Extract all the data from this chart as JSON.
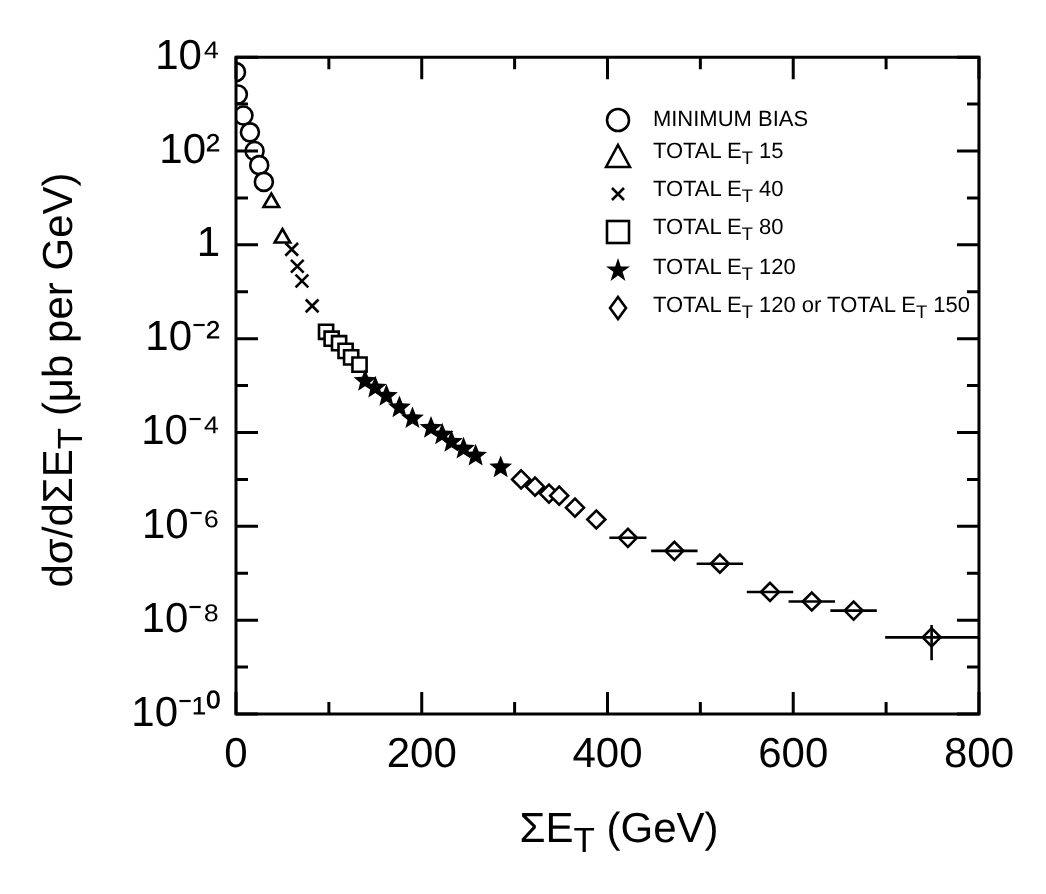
{
  "chart_data": {
    "type": "scatter",
    "xlabel": "ΣE$_{T}$ (GeV)",
    "ylabel": "dσ/dΣE$_{T}$ (μb per GeV)",
    "log": "y",
    "grid": false,
    "legend": "top right",
    "xlim": [
      0,
      800
    ],
    "xticks": [
      0,
      {
        "value": 100,
        "label": null
      },
      200,
      {
        "value": 300,
        "label": null
      },
      400,
      {
        "value": 500,
        "label": null
      },
      600,
      {
        "value": 700,
        "label": null
      },
      800
    ],
    "ylim": [
      1e-10,
      10000
    ],
    "yticks": [
      {
        "value": 1e-10,
        "label": "10⁻¹⁰"
      },
      {
        "value": 1e-09,
        "label": null
      },
      {
        "value": 1e-08,
        "label": "10⁻⁸"
      },
      {
        "value": 1e-07,
        "label": null
      },
      {
        "value": 1e-06,
        "label": "10⁻⁶"
      },
      {
        "value": 1e-05,
        "label": null
      },
      {
        "value": 0.0001,
        "label": "10⁻⁴"
      },
      {
        "value": 0.001,
        "label": null
      },
      {
        "value": 0.01,
        "label": "10⁻²"
      },
      {
        "value": 0.1,
        "label": null
      },
      1,
      {
        "value": 10,
        "label": null
      },
      {
        "value": 100,
        "label": "10²"
      },
      {
        "value": 1000,
        "label": null
      },
      {
        "value": 10000,
        "label": "10⁴"
      }
    ],
    "series": [
      {
        "name": "MINIMUM BIAS",
        "color": "#000000",
        "marker": "circle",
        "x": [
          0,
          2,
          8,
          15,
          20,
          25,
          30
        ],
        "values": [
          4800,
          1600,
          570,
          250,
          100,
          50,
          22
        ]
      },
      {
        "name": "TOTAL E$_{T}$ 15",
        "color": "#000000",
        "marker": "triangle",
        "x": [
          38,
          50
        ],
        "values": [
          8,
          1.4
        ]
      },
      {
        "name": "TOTAL E$_{T}$ 40",
        "color": "#000000",
        "marker": "cross",
        "x": [
          60,
          66,
          71,
          82
        ],
        "values": [
          0.8,
          0.35,
          0.17,
          0.05
        ]
      },
      {
        "name": "TOTAL E$_{T}$ 80",
        "color": "#000000",
        "marker": "square",
        "x": [
          97,
          103,
          111,
          118,
          124,
          133
        ],
        "values": [
          0.014,
          0.01,
          0.008,
          0.0055,
          0.004,
          0.0028
        ]
      },
      {
        "name": "TOTAL E$_{T}$ 120",
        "color": "#000000",
        "marker": "star",
        "x": [
          139,
          150,
          162,
          176,
          190,
          210,
          222,
          232,
          245,
          258,
          285
        ],
        "values": [
          0.00125,
          0.0009,
          0.0006,
          0.00034,
          0.0002,
          0.000125,
          9e-05,
          6.3e-05,
          4.5e-05,
          3.2e-05,
          1.8e-05
        ]
      },
      {
        "name": "TOTAL E$_{T}$ 120 or TOTAL E$_{T}$ 150",
        "color": "#000000",
        "marker": "diamond",
        "x": [
          307,
          322,
          337,
          348,
          365,
          388,
          422,
          472,
          521,
          575,
          620,
          665,
          749
        ],
        "values": [
          1e-05,
          7e-06,
          5e-06,
          4.5e-06,
          2.5e-06,
          1.4e-06,
          5.7e-07,
          3e-07,
          1.6e-07,
          4e-08,
          2.5e-08,
          1.6e-08,
          4.3e-09
        ],
        "xerrors": [
          null,
          null,
          null,
          null,
          null,
          null,
          20,
          25,
          25,
          25,
          25,
          25,
          50
        ],
        "errors": [
          null,
          null,
          null,
          null,
          null,
          null,
          null,
          null,
          null,
          null,
          null,
          null,
          [
            1.4e-09,
            7.9e-09
          ]
        ]
      }
    ]
  }
}
